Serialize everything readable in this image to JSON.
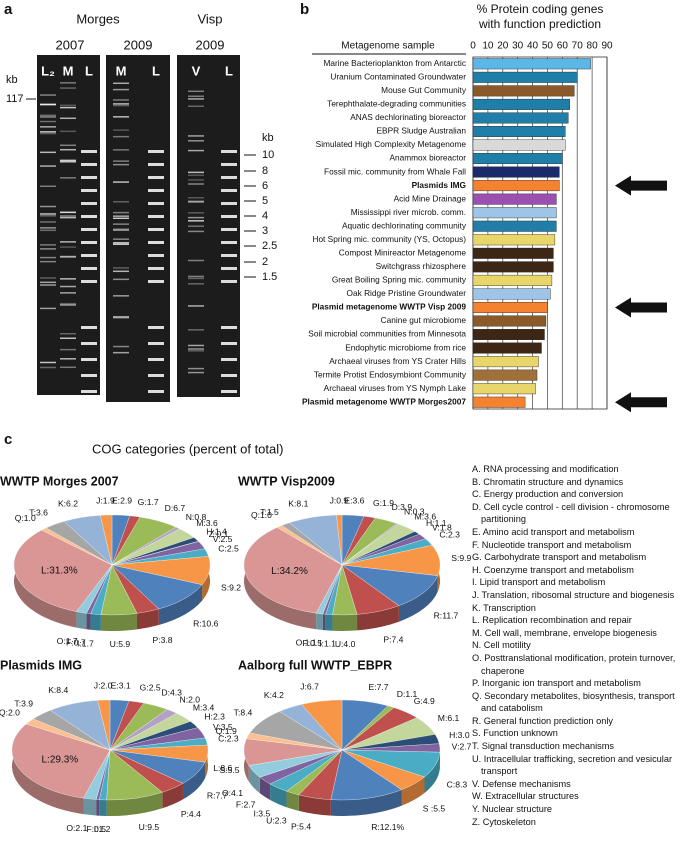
{
  "gel": {
    "label": "a",
    "sites": [
      "Morges",
      "Visp"
    ],
    "years": [
      "2007",
      "2009",
      "2009"
    ],
    "lanes": [
      "L₂",
      "M",
      "L",
      "M",
      "L",
      "V",
      "L"
    ],
    "kb_left": [
      "kb",
      "117"
    ],
    "kb_right": [
      "kb",
      "10",
      "8",
      "6",
      "5",
      "4",
      "3",
      "2.5",
      "2",
      "1.5"
    ]
  },
  "chart_data": [
    {
      "type": "bar",
      "horizontal": true,
      "label": "b",
      "title": "% Protein coding genes",
      "subtitle": "with function prediction",
      "column_header": "Metagenome sample",
      "categories": [
        "Marine Bacterioplankton from Antarctic",
        "Uranium Contaminated Groundwater",
        "Mouse Gut Community",
        "Terephthalate-degrading communities",
        "ANAS dechlorinating bioreactor",
        "EBPR Sludge Australian",
        "Simulated High Complexity Metagenome",
        "Anammox bioreactor",
        "Fossil mic. community from Whale Fall",
        "Plasmids IMG",
        "Acid Mine Drainage",
        "Mississippi river microb. comm.",
        "Aquatic dechlorinating community",
        "Hot Spring mic. community (YS, Octopus)",
        "Compost Minireactor Metagenome",
        "Switchgrass rhizosphere",
        "Great Boiling Spring mic. community",
        "Oak Ridge Pristine Groundwater",
        "Plasmid metagenome WWTP Visp 2009",
        "Canine gut microbiome",
        "Soil microbial communities from Minnesota",
        "Endophytic microbiome from rice",
        "Archaeal viruses from YS Crater Hills",
        "Termite Protist Endosymbiont Community",
        "Archaeal viruses from YS Nymph Lake",
        "Plasmid metagenome WWTP Morges2007"
      ],
      "values": [
        79,
        70,
        68,
        65,
        64,
        62,
        62,
        60,
        58,
        58,
        56,
        56,
        56,
        55,
        54,
        54,
        53,
        52,
        50,
        49,
        48,
        46,
        44,
        43,
        42,
        35
      ],
      "colors": [
        "#5bb8e6",
        "#1f7fa8",
        "#8b5a2b",
        "#1f7fa8",
        "#1f7fa8",
        "#1f7fa8",
        "#d9d9d9",
        "#1f7fa8",
        "#1b2a6b",
        "#f58231",
        "#9b4fb0",
        "#9ec5e8",
        "#1f7fa8",
        "#e8d66a",
        "#3d2614",
        "#3d2614",
        "#e8d66a",
        "#9ec5e8",
        "#f58231",
        "#8b5a2b",
        "#3d2614",
        "#3d2614",
        "#e8d66a",
        "#a0703a",
        "#e8d66a",
        "#f58231"
      ],
      "bold": [
        false,
        false,
        false,
        false,
        false,
        false,
        false,
        false,
        false,
        true,
        false,
        false,
        false,
        false,
        false,
        false,
        false,
        false,
        true,
        false,
        false,
        false,
        false,
        false,
        false,
        true
      ],
      "xlim": [
        0,
        90
      ],
      "xticks": [
        0,
        10,
        20,
        30,
        40,
        50,
        60,
        70,
        80,
        90
      ],
      "grid": true
    },
    {
      "type": "pie",
      "label": "c",
      "heading": "COG categories (percent of total)",
      "title": "WWTP Morges 2007",
      "values": [
        2.9,
        1.7,
        6.7,
        0.8,
        3.6,
        1.4,
        0.1,
        2.5,
        2.5,
        9.2,
        10.6,
        3.8,
        5.9,
        1.7,
        0.7,
        1.7,
        31.3,
        1.0,
        3.6,
        6.2,
        1.9
      ],
      "value_labels": [
        "E:2.9",
        "G:1.7",
        "D:6.7",
        "N:0.8",
        "M:3.6",
        "H:1.4",
        "Z:0.1",
        "V:2.5",
        "C:2.5",
        "S:9.2",
        "R:10.6",
        "P:3.8",
        "U:5.9",
        "I:1.7",
        "F:0.7",
        "O:1.7",
        "L:31.3%",
        "Q:1.0",
        "T:3.6",
        "K:6.2",
        "J:1.9"
      ],
      "colors": [
        "#4f81bd",
        "#c0504d",
        "#9bbb59",
        "#b3a2c7",
        "#c3d69b",
        "#2c4d75",
        "#1f497d",
        "#8064a2",
        "#4bacc6",
        "#f79646",
        "#4f81bd",
        "#c0504d",
        "#9bbb59",
        "#4bacc6",
        "#8064a2",
        "#93cddd",
        "#d99694",
        "#fac090",
        "#a6a6a6",
        "#95b3d7",
        "#f79646"
      ]
    },
    {
      "type": "pie",
      "title": "WWTP Visp2009",
      "values": [
        3.6,
        1.9,
        3.9,
        0.3,
        3.6,
        1.1,
        1.8,
        2.3,
        9.9,
        11.7,
        7.4,
        4.0,
        1.1,
        0.5,
        1.1,
        34.2,
        1.0,
        1.5,
        8.1,
        0.9
      ],
      "value_labels": [
        "E:3.6",
        "G:1.9",
        "D:3.9",
        "N:0.3",
        "M:3.6",
        "H:1.1",
        "V:1.8",
        "C:2.3",
        "S:9.9",
        "R:11.7",
        "P:7.4",
        "U:4.0",
        "I:1.1",
        "F:0.5",
        "O:1.1",
        "L:34.2%",
        "Q:1.0",
        "T:1.5",
        "K:8.1",
        "J:0.9"
      ],
      "colors": [
        "#4f81bd",
        "#c0504d",
        "#9bbb59",
        "#b3a2c7",
        "#c3d69b",
        "#2c4d75",
        "#8064a2",
        "#4bacc6",
        "#f79646",
        "#4f81bd",
        "#c0504d",
        "#9bbb59",
        "#4bacc6",
        "#8064a2",
        "#93cddd",
        "#d99694",
        "#fac090",
        "#a6a6a6",
        "#95b3d7",
        "#f79646"
      ]
    },
    {
      "type": "pie",
      "title": "Plasmids IMG",
      "values": [
        3.1,
        2.5,
        4.3,
        2.0,
        3.4,
        2.3,
        3.5,
        2.3,
        5.5,
        7.7,
        4.4,
        9.5,
        1.2,
        0.5,
        2.1,
        29.3,
        2.0,
        3.9,
        8.4,
        2.0
      ],
      "value_labels": [
        "E:3.1",
        "G:2.5",
        "D:4.3",
        "N:2.0",
        "M:3.4",
        "H:2.3",
        "V:3.5",
        "C:2.3",
        "S:5.5",
        "R:7.7",
        "P:4.4",
        "U:9.5",
        "I:1.2",
        "F:0.5",
        "O:2.1",
        "L:29.3%",
        "Q:2.0",
        "T:3.9",
        "K:8.4",
        "J:2.0"
      ],
      "colors": [
        "#4f81bd",
        "#c0504d",
        "#9bbb59",
        "#b3a2c7",
        "#c3d69b",
        "#2c4d75",
        "#8064a2",
        "#4bacc6",
        "#f79646",
        "#4f81bd",
        "#c0504d",
        "#9bbb59",
        "#4bacc6",
        "#8064a2",
        "#93cddd",
        "#d99694",
        "#fac090",
        "#a6a6a6",
        "#95b3d7",
        "#f79646"
      ]
    },
    {
      "type": "pie",
      "title": "Aalborg full WWTP_EBPR",
      "values": [
        7.7,
        1.1,
        4.9,
        6.1,
        3.0,
        2.7,
        8.3,
        5.5,
        12.1,
        5.4,
        2.3,
        3.5,
        2.7,
        4.1,
        8.6,
        1.9,
        8.4,
        4.2,
        6.7
      ],
      "value_labels": [
        "E:7.7",
        "D:1.1",
        "G:4.9",
        "M:6.1",
        "H:3.0",
        "V:2.7",
        "C:8.3",
        "S :5.5",
        "R:12.1%",
        "P:5.4",
        "U:2.3",
        "I:3.5",
        "F:2.7",
        "O:4.1",
        "L:8.6",
        "Q:1.9",
        "T:8.4",
        "K:4.2",
        "J:6.7"
      ],
      "colors": [
        "#4f81bd",
        "#9bbb59",
        "#c0504d",
        "#c3d69b",
        "#2c4d75",
        "#8064a2",
        "#4bacc6",
        "#f79646",
        "#4f81bd",
        "#c0504d",
        "#9bbb59",
        "#4bacc6",
        "#8064a2",
        "#93cddd",
        "#d99694",
        "#fac090",
        "#a6a6a6",
        "#95b3d7",
        "#f79646"
      ]
    }
  ],
  "cog_legend": [
    "A. RNA processing and modification",
    "B. Chromatin structure and dynamics",
    "C. Energy production and conversion",
    "D. Cell cycle control - cell division - chromosome partitioning",
    "E. Amino acid transport and metabolism",
    "F. Nucleotide transport and metabolism",
    "G. Carbohydrate transport and metabolism",
    "H. Coenzyme transport and metabolism",
    "I. Lipid transport and metabolism",
    "J. Translation, ribosomal structure and biogenesis",
    "K. Transcription",
    "L. Replication recombination and repair",
    "M. Cell wall, membrane, envelope biogenesis",
    "N. Cell motility",
    "O. Posttranslational modification, protein turnover, chaperone",
    "P. Inorganic ion transport and metabolism",
    "Q. Secondary metabolites, biosynthesis, transport and catabolism",
    "R. General function prediction only",
    "S. Function unknown",
    "T. Signal transduction mechanisms",
    "U. Intracellular trafficking, secretion and vesicular transport",
    "V. Defense mechanisms",
    "W. Extracellular structures",
    "Y. Nuclear structure",
    "Z. Cytoskeleton"
  ]
}
